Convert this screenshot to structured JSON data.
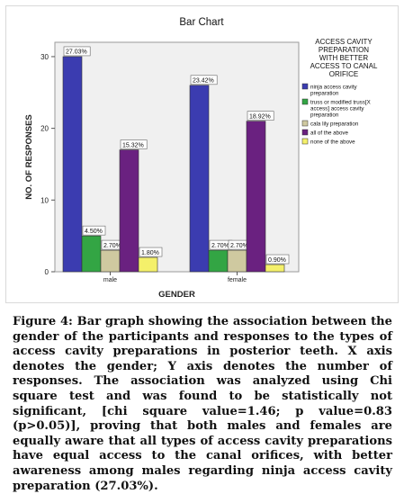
{
  "chart_data": {
    "type": "bar",
    "title": "Bar Chart",
    "xlabel": "GENDER",
    "ylabel": "NO. OF RESPONSES",
    "ylim": [
      0,
      32
    ],
    "yticks": [
      0,
      10,
      20,
      30
    ],
    "categories": [
      "male",
      "female"
    ],
    "legend_title": "ACCESS CAVITY PREPARATION WITH BETTER ACCESS TO CANAL ORIFICE",
    "legend_placement": "right",
    "series": [
      {
        "name": "ninja access cavity preparation",
        "color": "#3b3cb0",
        "values": [
          30,
          26
        ],
        "labels": [
          "27.03%",
          "23.42%"
        ]
      },
      {
        "name": "truss or modified truss[X access] access cavity preparation",
        "color": "#33a544",
        "values": [
          5,
          3
        ],
        "labels": [
          "4.50%",
          "2.70%"
        ]
      },
      {
        "name": "cala lily preparation",
        "color": "#cfc9a0",
        "values": [
          3,
          3
        ],
        "labels": [
          "2.70%",
          "2.70%"
        ]
      },
      {
        "name": "all of the above",
        "color": "#6a2180",
        "values": [
          17,
          21
        ],
        "labels": [
          "15.32%",
          "18.92%"
        ]
      },
      {
        "name": "none of the above",
        "color": "#f4f06a",
        "values": [
          2,
          1
        ],
        "labels": [
          "1.80%",
          "0.90%"
        ]
      }
    ]
  },
  "caption": "Figure 4: Bar graph showing the association between the gender of the participants and responses to the types of access cavity preparations in posterior teeth. X axis denotes the gender; Y axis denotes the number of responses. The association was analyzed using Chi square test and was found to be statistically not significant, [chi square value=1.46; p value=0.83 (p>0.05)], proving that both males and females are equally aware that all types of access cavity preparations have equal access to the canal orifices, with better awareness among males regarding ninja access cavity preparation (27.03%)."
}
